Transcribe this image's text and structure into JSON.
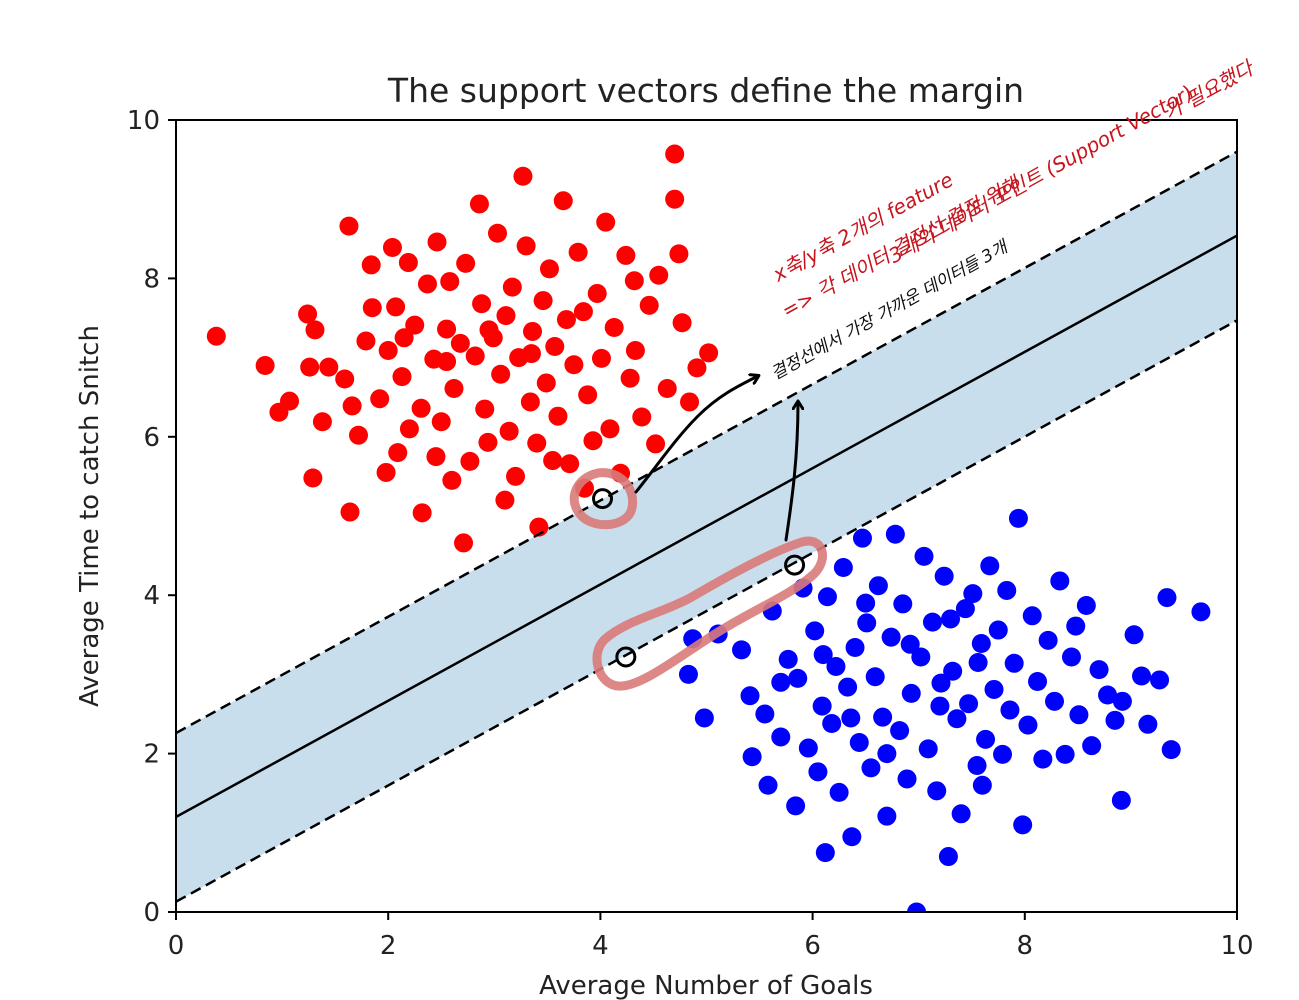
{
  "chart_data": {
    "type": "scatter",
    "title": "The support vectors define the margin",
    "xlabel": "Average Number of Goals",
    "ylabel": "Average Time to catch Snitch",
    "xlim": [
      0,
      10
    ],
    "ylim": [
      0,
      10
    ],
    "xticks": [
      "0",
      "2",
      "4",
      "6",
      "8",
      "10"
    ],
    "yticks": [
      "0",
      "2",
      "4",
      "6",
      "8",
      "10"
    ],
    "grid": false,
    "colors": {
      "class_a": "#ff0000",
      "class_b": "#0000ff",
      "margin_fill": "#c6dceb",
      "highlight": "#e07a7a",
      "note": "#c8141e"
    },
    "decision_boundary": {
      "slope": 0.734,
      "intercept": 1.2
    },
    "margin_lines": [
      {
        "slope": 0.734,
        "intercept": 2.26
      },
      {
        "slope": 0.734,
        "intercept": 0.13
      }
    ],
    "support_vectors": [
      {
        "x": 4.02,
        "y": 5.22
      },
      {
        "x": 4.24,
        "y": 3.22
      },
      {
        "x": 5.83,
        "y": 4.38
      }
    ],
    "series": [
      {
        "color": "#ff0000",
        "points": [
          [
            0.38,
            7.27
          ],
          [
            0.84,
            6.9
          ],
          [
            0.97,
            6.31
          ],
          [
            1.07,
            6.45
          ],
          [
            1.26,
            6.88
          ],
          [
            1.24,
            7.55
          ],
          [
            1.31,
            7.35
          ],
          [
            1.29,
            5.48
          ],
          [
            1.38,
            6.19
          ],
          [
            1.44,
            6.88
          ],
          [
            1.59,
            6.73
          ],
          [
            1.63,
            8.66
          ],
          [
            1.66,
            6.39
          ],
          [
            1.64,
            5.05
          ],
          [
            1.72,
            6.02
          ],
          [
            1.79,
            7.21
          ],
          [
            1.84,
            8.17
          ],
          [
            1.85,
            7.63
          ],
          [
            1.92,
            6.48
          ],
          [
            2.0,
            7.09
          ],
          [
            2.04,
            8.39
          ],
          [
            2.07,
            7.64
          ],
          [
            2.09,
            5.8
          ],
          [
            2.13,
            6.76
          ],
          [
            2.19,
            8.2
          ],
          [
            2.25,
            7.41
          ],
          [
            2.31,
            6.36
          ],
          [
            2.32,
            5.04
          ],
          [
            2.37,
            7.93
          ],
          [
            2.43,
            6.98
          ],
          [
            2.46,
            8.46
          ],
          [
            2.5,
            6.19
          ],
          [
            2.55,
            7.36
          ],
          [
            2.58,
            7.96
          ],
          [
            2.62,
            6.61
          ],
          [
            2.68,
            7.18
          ],
          [
            2.71,
            4.66
          ],
          [
            2.73,
            8.19
          ],
          [
            2.77,
            5.69
          ],
          [
            2.82,
            7.02
          ],
          [
            2.86,
            8.94
          ],
          [
            2.88,
            7.68
          ],
          [
            2.91,
            6.35
          ],
          [
            2.94,
            5.93
          ],
          [
            2.99,
            7.25
          ],
          [
            3.03,
            8.57
          ],
          [
            3.06,
            6.79
          ],
          [
            3.11,
            7.53
          ],
          [
            3.14,
            6.07
          ],
          [
            3.17,
            7.89
          ],
          [
            3.2,
            5.5
          ],
          [
            3.23,
            7.0
          ],
          [
            3.27,
            9.29
          ],
          [
            3.3,
            8.41
          ],
          [
            3.34,
            6.44
          ],
          [
            3.36,
            7.33
          ],
          [
            3.4,
            5.92
          ],
          [
            3.42,
            4.86
          ],
          [
            3.46,
            7.72
          ],
          [
            3.49,
            6.68
          ],
          [
            3.52,
            8.12
          ],
          [
            3.57,
            7.14
          ],
          [
            3.6,
            6.26
          ],
          [
            3.65,
            8.98
          ],
          [
            3.68,
            7.48
          ],
          [
            3.71,
            5.66
          ],
          [
            3.75,
            6.91
          ],
          [
            3.79,
            8.33
          ],
          [
            3.84,
            7.58
          ],
          [
            3.88,
            6.53
          ],
          [
            3.93,
            5.95
          ],
          [
            3.97,
            7.81
          ],
          [
            4.01,
            6.99
          ],
          [
            4.05,
            8.71
          ],
          [
            4.09,
            6.1
          ],
          [
            4.13,
            7.38
          ],
          [
            4.19,
            5.54
          ],
          [
            4.24,
            8.29
          ],
          [
            4.28,
            6.74
          ],
          [
            4.33,
            7.09
          ],
          [
            4.39,
            6.25
          ],
          [
            4.46,
            7.66
          ],
          [
            4.52,
            5.91
          ],
          [
            4.55,
            8.04
          ],
          [
            4.63,
            6.61
          ],
          [
            4.7,
            9.57
          ],
          [
            4.7,
            9.0
          ],
          [
            4.77,
            7.44
          ],
          [
            4.84,
            6.44
          ],
          [
            4.91,
            6.87
          ],
          [
            5.02,
            7.06
          ],
          [
            4.74,
            8.31
          ],
          [
            4.32,
            7.97
          ],
          [
            2.2,
            6.1
          ],
          [
            2.6,
            5.45
          ],
          [
            3.1,
            5.2
          ],
          [
            3.55,
            5.7
          ],
          [
            1.98,
            5.55
          ],
          [
            2.45,
            5.75
          ],
          [
            3.85,
            5.35
          ],
          [
            2.15,
            7.25
          ],
          [
            2.95,
            7.35
          ],
          [
            3.35,
            7.05
          ],
          [
            2.55,
            6.95
          ]
        ]
      },
      {
        "color": "#0000ff",
        "points": [
          [
            4.83,
            3.0
          ],
          [
            4.98,
            2.45
          ],
          [
            4.87,
            3.45
          ],
          [
            5.11,
            3.51
          ],
          [
            5.33,
            3.31
          ],
          [
            5.41,
            2.73
          ],
          [
            5.43,
            1.96
          ],
          [
            5.55,
            2.5
          ],
          [
            5.58,
            1.6
          ],
          [
            5.62,
            3.8
          ],
          [
            5.7,
            2.21
          ],
          [
            5.77,
            3.19
          ],
          [
            5.84,
            1.34
          ],
          [
            5.86,
            2.95
          ],
          [
            5.91,
            4.09
          ],
          [
            5.96,
            2.07
          ],
          [
            6.02,
            3.55
          ],
          [
            6.05,
            1.77
          ],
          [
            6.09,
            2.6
          ],
          [
            6.12,
            0.75
          ],
          [
            6.14,
            3.98
          ],
          [
            6.18,
            2.38
          ],
          [
            6.22,
            3.1
          ],
          [
            6.25,
            1.51
          ],
          [
            6.29,
            4.35
          ],
          [
            6.33,
            2.84
          ],
          [
            6.37,
            0.95
          ],
          [
            6.4,
            3.34
          ],
          [
            6.44,
            2.14
          ],
          [
            6.47,
            4.72
          ],
          [
            6.51,
            3.65
          ],
          [
            6.55,
            1.82
          ],
          [
            6.59,
            2.97
          ],
          [
            6.62,
            4.12
          ],
          [
            6.66,
            2.46
          ],
          [
            6.7,
            1.21
          ],
          [
            6.74,
            3.47
          ],
          [
            6.78,
            4.77
          ],
          [
            6.82,
            2.29
          ],
          [
            6.85,
            3.89
          ],
          [
            6.89,
            1.68
          ],
          [
            6.93,
            2.76
          ],
          [
            6.98,
            0.0
          ],
          [
            7.02,
            3.22
          ],
          [
            7.05,
            4.49
          ],
          [
            7.09,
            2.06
          ],
          [
            7.13,
            3.66
          ],
          [
            7.17,
            1.53
          ],
          [
            7.21,
            2.89
          ],
          [
            7.24,
            4.24
          ],
          [
            7.28,
            0.7
          ],
          [
            7.32,
            3.04
          ],
          [
            7.36,
            2.44
          ],
          [
            7.4,
            1.24
          ],
          [
            7.44,
            3.83
          ],
          [
            7.47,
            2.63
          ],
          [
            7.51,
            4.02
          ],
          [
            7.55,
            1.85
          ],
          [
            7.59,
            3.39
          ],
          [
            7.63,
            2.18
          ],
          [
            7.67,
            4.37
          ],
          [
            7.71,
            2.81
          ],
          [
            7.75,
            3.56
          ],
          [
            7.79,
            1.99
          ],
          [
            7.83,
            4.06
          ],
          [
            7.86,
            2.55
          ],
          [
            7.9,
            3.14
          ],
          [
            7.94,
            4.97
          ],
          [
            7.98,
            1.1
          ],
          [
            8.03,
            2.36
          ],
          [
            8.07,
            3.74
          ],
          [
            8.12,
            2.91
          ],
          [
            8.17,
            1.93
          ],
          [
            8.22,
            3.43
          ],
          [
            8.28,
            2.66
          ],
          [
            8.33,
            4.18
          ],
          [
            8.38,
            1.99
          ],
          [
            8.44,
            3.22
          ],
          [
            8.51,
            2.49
          ],
          [
            8.58,
            3.87
          ],
          [
            8.63,
            2.1
          ],
          [
            8.7,
            3.06
          ],
          [
            8.78,
            2.74
          ],
          [
            8.85,
            2.42
          ],
          [
            8.91,
            1.41
          ],
          [
            9.03,
            3.5
          ],
          [
            9.1,
            2.98
          ],
          [
            9.16,
            2.37
          ],
          [
            9.27,
            2.93
          ],
          [
            9.34,
            3.97
          ],
          [
            9.38,
            2.05
          ],
          [
            9.66,
            3.79
          ],
          [
            8.92,
            2.66
          ],
          [
            8.48,
            3.61
          ],
          [
            7.56,
            3.15
          ],
          [
            6.92,
            3.38
          ],
          [
            6.36,
            2.45
          ],
          [
            6.7,
            2.0
          ],
          [
            7.2,
            2.6
          ],
          [
            7.6,
            1.6
          ],
          [
            6.1,
            3.25
          ],
          [
            5.7,
            2.9
          ],
          [
            6.5,
            3.9
          ],
          [
            7.3,
            3.7
          ]
        ]
      }
    ]
  },
  "annotations": {
    "note_red_1": "x축/y축 2개의 feature",
    "note_red_2": "=> 각 데이터 결정선 결정 위해",
    "note_red_3": "3개의 데이터 포인트 (Support Vector)",
    "note_red_4": "가 필요했다",
    "note_black": "결정선에서   가장 가까운 데이터들 3개"
  }
}
